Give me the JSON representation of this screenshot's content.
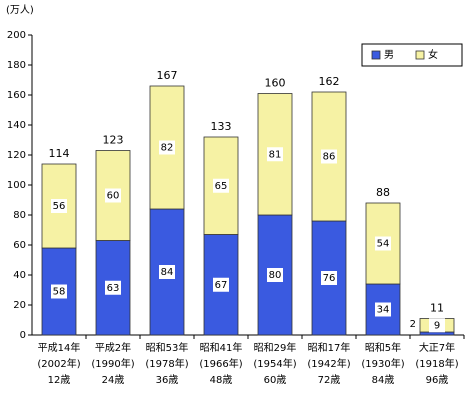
{
  "chart_data": {
    "type": "stacked_bar",
    "y_unit": "(万人)",
    "categories": [
      [
        "平成14年",
        "(2002年)",
        "12歳"
      ],
      [
        "平成2年",
        "(1990年)",
        "24歳"
      ],
      [
        "昭和53年",
        "(1978年)",
        "36歳"
      ],
      [
        "昭和41年",
        "(1966年)",
        "48歳"
      ],
      [
        "昭和29年",
        "(1954年)",
        "60歳"
      ],
      [
        "昭和17年",
        "(1942年)",
        "72歳"
      ],
      [
        "昭和5年",
        "(1930年)",
        "84歳"
      ],
      [
        "大正7年",
        "(1918年)",
        "96歳"
      ]
    ],
    "series": [
      {
        "name": "男",
        "color": "#3a5ae0",
        "values": [
          58,
          63,
          84,
          67,
          80,
          76,
          34,
          2
        ]
      },
      {
        "name": "女",
        "color": "#f6f2a4",
        "values": [
          56,
          60,
          82,
          65,
          81,
          86,
          54,
          9
        ]
      }
    ],
    "totals": [
      114,
      123,
      167,
      133,
      160,
      162,
      88,
      11
    ],
    "ylim": [
      0,
      200
    ],
    "yticks": [
      0,
      20,
      40,
      60,
      80,
      100,
      120,
      140,
      160,
      180,
      200
    ],
    "grid": false,
    "legend": "top-right"
  }
}
